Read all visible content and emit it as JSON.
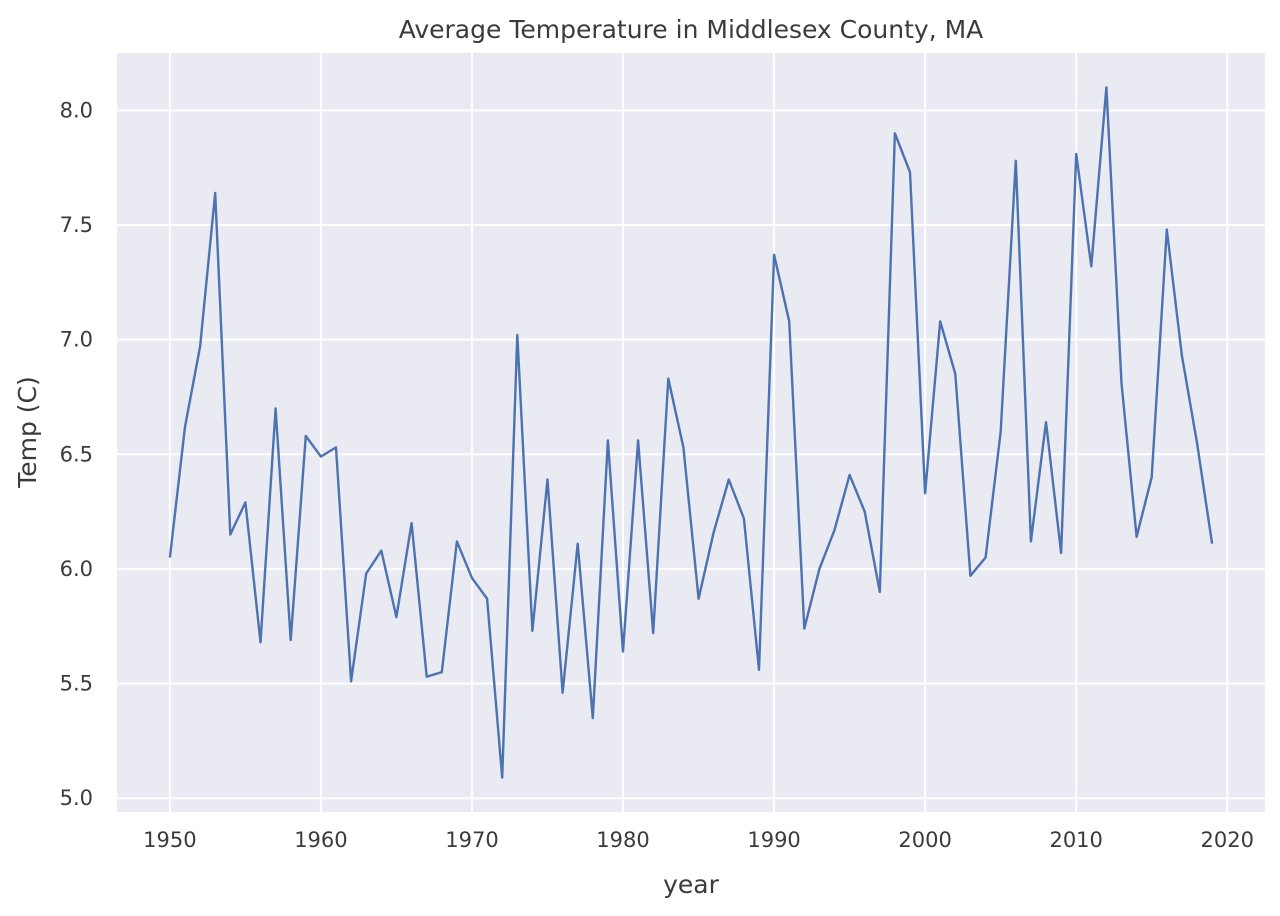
{
  "chart_data": {
    "type": "line",
    "title": "Average Temperature in Middlesex County, MA",
    "xlabel": "year",
    "ylabel": "Temp (C)",
    "xlim": [
      1946.5,
      2022.5
    ],
    "ylim": [
      4.94,
      8.25
    ],
    "xticks": [
      1950,
      1960,
      1970,
      1980,
      1990,
      2000,
      2010,
      2020
    ],
    "yticks": [
      5.0,
      5.5,
      6.0,
      6.5,
      7.0,
      7.5,
      8.0
    ],
    "ytick_labels": [
      "5.0",
      "5.5",
      "6.0",
      "6.5",
      "7.0",
      "7.5",
      "8.0"
    ],
    "grid": true,
    "colors": {
      "plot_background": "#eaeaf2",
      "grid": "#ffffff",
      "line": "#4c72b0"
    },
    "series": [
      {
        "x": [
          1950,
          1951,
          1952,
          1953,
          1954,
          1955,
          1956,
          1957,
          1958,
          1959,
          1960,
          1961,
          1962,
          1963,
          1964,
          1965,
          1966,
          1967,
          1968,
          1969,
          1970,
          1971,
          1972,
          1973,
          1974,
          1975,
          1976,
          1977,
          1978,
          1979,
          1980,
          1981,
          1982,
          1983,
          1984,
          1985,
          1986,
          1987,
          1988,
          1989,
          1990,
          1991,
          1992,
          1993,
          1994,
          1995,
          1996,
          1997,
          1998,
          1999,
          2000,
          2001,
          2002,
          2003,
          2004,
          2005,
          2006,
          2007,
          2008,
          2009,
          2010,
          2011,
          2012,
          2013,
          2014,
          2015,
          2016,
          2017,
          2018,
          2019
        ],
        "values": [
          6.05,
          6.62,
          6.97,
          7.64,
          6.15,
          6.29,
          5.68,
          6.7,
          5.69,
          6.58,
          6.49,
          6.53,
          5.51,
          5.98,
          6.08,
          5.79,
          6.2,
          5.53,
          5.55,
          6.12,
          5.96,
          5.87,
          5.09,
          7.02,
          5.73,
          6.39,
          5.46,
          6.11,
          5.35,
          6.56,
          5.64,
          6.56,
          5.72,
          6.83,
          6.53,
          5.87,
          6.16,
          6.39,
          6.22,
          5.56,
          7.37,
          7.08,
          5.74,
          6.0,
          6.17,
          6.41,
          6.25,
          5.9,
          7.9,
          7.73,
          6.33,
          7.08,
          6.85,
          5.97,
          6.05,
          6.6,
          7.78,
          6.12,
          6.64,
          6.07,
          7.81,
          7.32,
          8.1,
          6.81,
          6.14,
          6.4,
          7.48,
          6.93,
          6.55,
          6.11
        ]
      }
    ]
  }
}
